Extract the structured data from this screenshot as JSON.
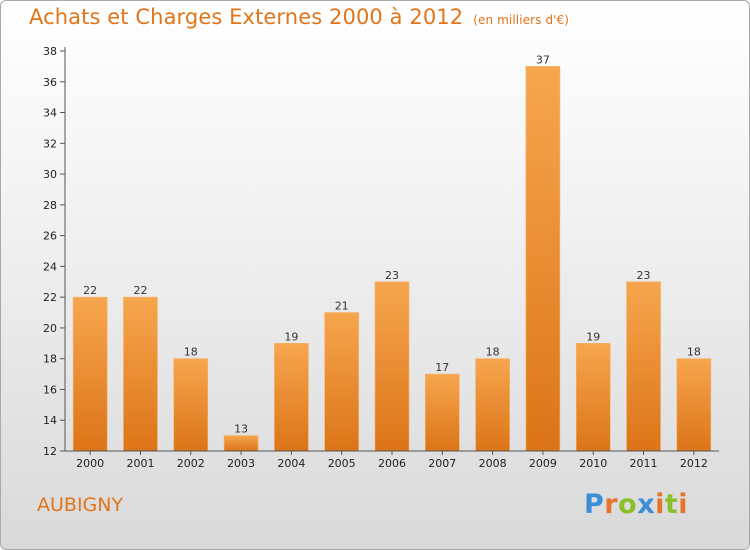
{
  "title": "Achats et Charges Externes 2000 à 2012",
  "subtitle": "(en milliers d'€)",
  "commune": "AUBIGNY",
  "logo": {
    "letters": [
      "P",
      "r",
      "o",
      "x",
      "i",
      "t",
      "i"
    ],
    "colors": [
      "#3b8fd6",
      "#e6732a",
      "#8bbf2a",
      "#3b8fd6",
      "#e6732a",
      "#8bbf2a",
      "#e6732a"
    ]
  },
  "colors": {
    "bar_top": "#f7a64e",
    "bar_bottom": "#dc7418",
    "axis": "#555555",
    "grid": "#bbbbbb",
    "accent": "#e2751a"
  },
  "chart_data": {
    "type": "bar",
    "title": "Achats et Charges Externes 2000 à 2012",
    "subtitle": "(en milliers d'€)",
    "categories": [
      "2000",
      "2001",
      "2002",
      "2003",
      "2004",
      "2005",
      "2006",
      "2007",
      "2008",
      "2009",
      "2010",
      "2011",
      "2012"
    ],
    "values": [
      22,
      22,
      18,
      13,
      19,
      21,
      23,
      17,
      18,
      37,
      19,
      23,
      18
    ],
    "ylim": [
      12,
      38
    ],
    "yticks": [
      12,
      14,
      16,
      18,
      20,
      22,
      24,
      26,
      28,
      30,
      32,
      34,
      36,
      38
    ],
    "xlabel": "",
    "ylabel": "",
    "grid": "y-axis tick marks only",
    "legend": "none"
  }
}
